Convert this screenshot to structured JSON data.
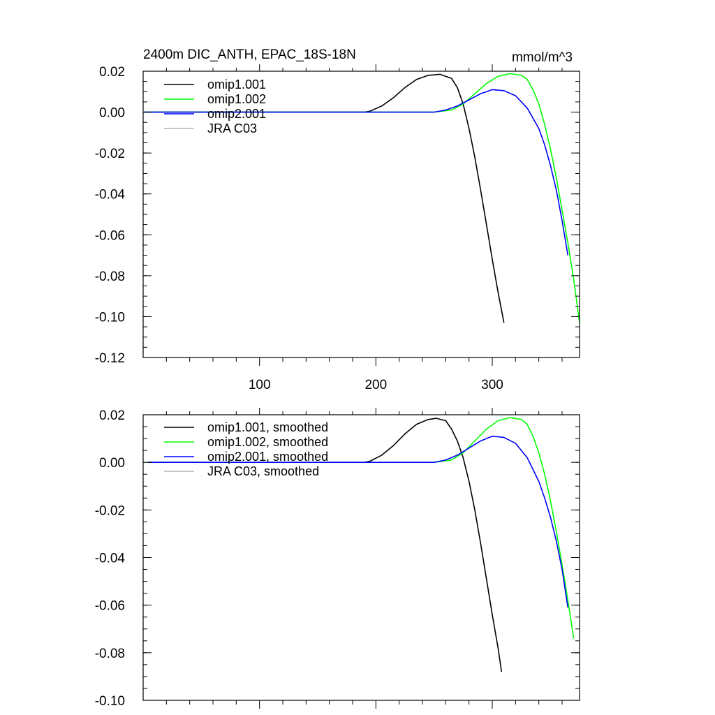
{
  "chart_data": [
    {
      "type": "line",
      "title": "2400m DIC_ANTH, EPAC_18S-18N",
      "units": "mmol/m^3",
      "xlim": [
        0,
        375
      ],
      "ylim": [
        -0.12,
        0.02
      ],
      "x_ticks": [
        100,
        200,
        300
      ],
      "x_tick_labels": [
        "100",
        "200",
        "300"
      ],
      "y_ticks": [
        0.02,
        0.0,
        -0.02,
        -0.04,
        -0.06,
        -0.08,
        -0.1,
        -0.12
      ],
      "y_tick_labels": [
        "0.02",
        "0.00",
        "-0.02",
        "-0.04",
        "-0.06",
        "-0.08",
        "-0.10",
        "-0.12"
      ],
      "legend_position": "top-left",
      "series": [
        {
          "name": "omip1.001",
          "color": "#000000",
          "x": [
            1,
            190,
            195,
            205,
            215,
            225,
            235,
            245,
            255,
            265,
            270,
            275,
            280,
            285,
            290,
            295,
            300,
            305,
            310
          ],
          "y": [
            0.0,
            0.0,
            0.0005,
            0.003,
            0.007,
            0.012,
            0.016,
            0.018,
            0.0185,
            0.0165,
            0.012,
            0.004,
            -0.008,
            -0.022,
            -0.038,
            -0.055,
            -0.072,
            -0.088,
            -0.103
          ]
        },
        {
          "name": "omip1.002",
          "color": "#00ff00",
          "x": [
            1,
            250,
            265,
            275,
            285,
            295,
            305,
            315,
            325,
            330,
            335,
            340,
            345,
            350,
            355,
            360,
            365,
            370,
            375
          ],
          "y": [
            0.0,
            0.0,
            0.001,
            0.004,
            0.009,
            0.014,
            0.0175,
            0.0188,
            0.018,
            0.016,
            0.011,
            0.004,
            -0.006,
            -0.018,
            -0.032,
            -0.048,
            -0.064,
            -0.082,
            -0.103
          ]
        },
        {
          "name": "omip2.001",
          "color": "#0000ff",
          "x": [
            1,
            250,
            260,
            270,
            280,
            290,
            300,
            310,
            320,
            330,
            340,
            345,
            350,
            355,
            360,
            365
          ],
          "y": [
            0.0,
            0.0,
            0.001,
            0.003,
            0.006,
            0.009,
            0.011,
            0.0105,
            0.008,
            0.002,
            -0.008,
            -0.016,
            -0.026,
            -0.038,
            -0.053,
            -0.07
          ]
        },
        {
          "name": "JRA C03",
          "color": "#b4b4b4",
          "x": [],
          "y": []
        }
      ]
    },
    {
      "type": "line",
      "title": "",
      "units": "",
      "xlim": [
        0,
        375
      ],
      "ylim": [
        -0.1,
        0.02
      ],
      "x_ticks": [
        100,
        200,
        300
      ],
      "x_tick_labels": [],
      "y_ticks": [
        0.02,
        0.0,
        -0.02,
        -0.04,
        -0.06,
        -0.08,
        -0.1
      ],
      "y_tick_labels": [
        "0.02",
        "0.00",
        "-0.02",
        "-0.04",
        "-0.06",
        "-0.08",
        "-0.10"
      ],
      "legend_position": "top-left",
      "series": [
        {
          "name": "omip1.001, smoothed",
          "color": "#000000",
          "x": [
            4,
            190,
            195,
            205,
            215,
            225,
            235,
            245,
            252,
            260,
            265,
            270,
            275,
            280,
            285,
            290,
            295,
            300,
            305,
            308
          ],
          "y": [
            0.0,
            0.0,
            0.0005,
            0.003,
            0.007,
            0.012,
            0.016,
            0.018,
            0.0185,
            0.0175,
            0.014,
            0.009,
            0.002,
            -0.008,
            -0.02,
            -0.034,
            -0.049,
            -0.064,
            -0.078,
            -0.088
          ]
        },
        {
          "name": "omip1.002, smoothed",
          "color": "#00ff00",
          "x": [
            4,
            250,
            265,
            275,
            285,
            295,
            305,
            315,
            325,
            330,
            335,
            340,
            345,
            350,
            355,
            360,
            365,
            370
          ],
          "y": [
            0.0,
            0.0,
            0.001,
            0.004,
            0.009,
            0.014,
            0.0175,
            0.0188,
            0.018,
            0.016,
            0.011,
            0.004,
            -0.005,
            -0.016,
            -0.029,
            -0.043,
            -0.058,
            -0.074
          ]
        },
        {
          "name": "omip2.001, smoothed",
          "color": "#0000ff",
          "x": [
            4,
            250,
            260,
            270,
            280,
            290,
            300,
            310,
            320,
            330,
            340,
            345,
            350,
            355,
            360,
            365
          ],
          "y": [
            0.0,
            0.0,
            0.001,
            0.003,
            0.006,
            0.009,
            0.011,
            0.0105,
            0.008,
            0.002,
            -0.008,
            -0.015,
            -0.023,
            -0.033,
            -0.045,
            -0.061
          ]
        },
        {
          "name": "JRA C03, smoothed",
          "color": "#b4b4b4",
          "x": [],
          "y": []
        }
      ]
    }
  ]
}
